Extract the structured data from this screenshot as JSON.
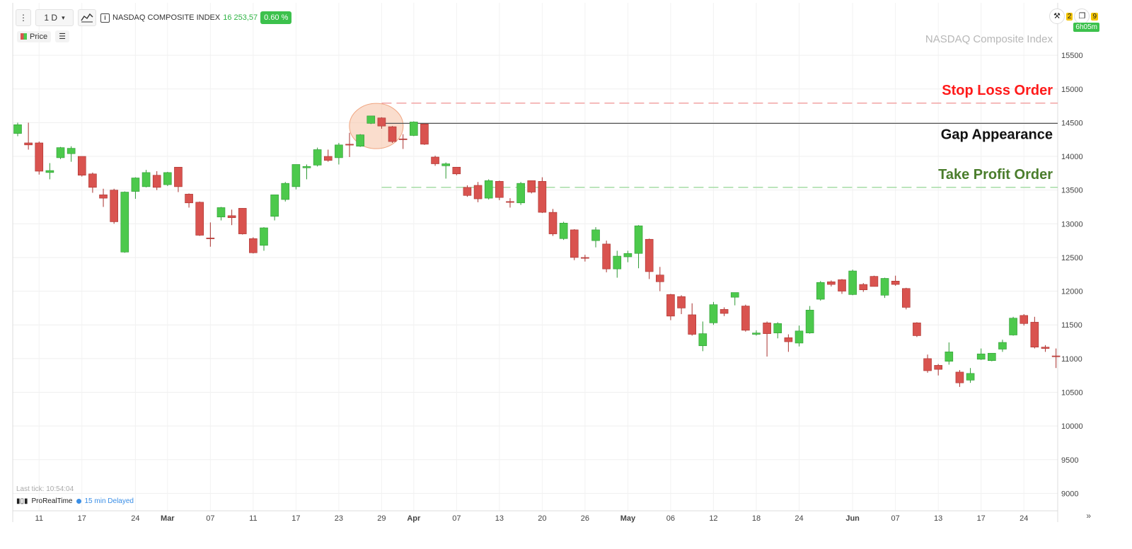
{
  "toolbar": {
    "timeframe_label": "1 D",
    "instrument_name": "NASDAQ COMPOSITE INDEX",
    "last_price": "16 253,57",
    "change_pct": "0.60 %"
  },
  "legend": {
    "price_label": "Price"
  },
  "corner": {
    "badge_a": "2",
    "badge_b": "9",
    "timer": "6h05m"
  },
  "footer": {
    "last_tick": "Last tick: 10:54:04",
    "brand": "ProRealTime",
    "delay": "15 min Delayed"
  },
  "chart_data": {
    "type": "candlestick",
    "title": "NASDAQ Composite Index",
    "ylim": [
      8700,
      15900
    ],
    "y_ticks": [
      9000,
      9500,
      10000,
      10500,
      11000,
      11500,
      12000,
      12500,
      13000,
      13500,
      14000,
      14500,
      15000,
      15500
    ],
    "y_tick_labels": [
      "9000",
      "9500",
      "10000",
      "10500",
      "11000",
      "11500",
      "12000",
      "12500",
      "13000",
      "13500",
      "14000",
      "14500",
      "15000",
      "15500"
    ],
    "x_tick_labels": [
      {
        "i": 2,
        "label": "11",
        "bold": false
      },
      {
        "i": 6,
        "label": "17",
        "bold": false
      },
      {
        "i": 11,
        "label": "24",
        "bold": false
      },
      {
        "i": 14,
        "label": "Mar",
        "bold": true
      },
      {
        "i": 18,
        "label": "07",
        "bold": false
      },
      {
        "i": 22,
        "label": "11",
        "bold": false
      },
      {
        "i": 26,
        "label": "17",
        "bold": false
      },
      {
        "i": 30,
        "label": "23",
        "bold": false
      },
      {
        "i": 34,
        "label": "29",
        "bold": false
      },
      {
        "i": 37,
        "label": "Apr",
        "bold": true
      },
      {
        "i": 41,
        "label": "07",
        "bold": false
      },
      {
        "i": 45,
        "label": "13",
        "bold": false
      },
      {
        "i": 49,
        "label": "20",
        "bold": false
      },
      {
        "i": 53,
        "label": "26",
        "bold": false
      },
      {
        "i": 57,
        "label": "May",
        "bold": true
      },
      {
        "i": 61,
        "label": "06",
        "bold": false
      },
      {
        "i": 65,
        "label": "12",
        "bold": false
      },
      {
        "i": 69,
        "label": "18",
        "bold": false
      },
      {
        "i": 73,
        "label": "24",
        "bold": false
      },
      {
        "i": 78,
        "label": "Jun",
        "bold": true
      },
      {
        "i": 82,
        "label": "07",
        "bold": false
      },
      {
        "i": 86,
        "label": "13",
        "bold": false
      },
      {
        "i": 90,
        "label": "17",
        "bold": false
      },
      {
        "i": 94,
        "label": "24",
        "bold": false
      }
    ],
    "candles": [
      {
        "o": 14340,
        "h": 14500,
        "l": 14300,
        "c": 14470
      },
      {
        "o": 14200,
        "h": 14500,
        "l": 14100,
        "c": 14170
      },
      {
        "o": 14200,
        "h": 14220,
        "l": 13730,
        "c": 13780
      },
      {
        "o": 13760,
        "h": 13900,
        "l": 13660,
        "c": 13790
      },
      {
        "o": 13980,
        "h": 14140,
        "l": 13960,
        "c": 14130
      },
      {
        "o": 14040,
        "h": 14150,
        "l": 13920,
        "c": 14120
      },
      {
        "o": 14000,
        "h": 14000,
        "l": 13700,
        "c": 13720
      },
      {
        "o": 13740,
        "h": 13760,
        "l": 13460,
        "c": 13540
      },
      {
        "o": 13430,
        "h": 13520,
        "l": 13250,
        "c": 13380
      },
      {
        "o": 13500,
        "h": 13520,
        "l": 13000,
        "c": 13030
      },
      {
        "o": 12580,
        "h": 13480,
        "l": 12570,
        "c": 13470
      },
      {
        "o": 13480,
        "h": 13690,
        "l": 13370,
        "c": 13680
      },
      {
        "o": 13550,
        "h": 13800,
        "l": 13540,
        "c": 13760
      },
      {
        "o": 13720,
        "h": 13780,
        "l": 13500,
        "c": 13540
      },
      {
        "o": 13580,
        "h": 13770,
        "l": 13560,
        "c": 13760
      },
      {
        "o": 13840,
        "h": 13840,
        "l": 13470,
        "c": 13550
      },
      {
        "o": 13440,
        "h": 13450,
        "l": 13240,
        "c": 13310
      },
      {
        "o": 13320,
        "h": 13330,
        "l": 12820,
        "c": 12830
      },
      {
        "o": 12790,
        "h": 13020,
        "l": 12660,
        "c": 12780
      },
      {
        "o": 13100,
        "h": 13250,
        "l": 13050,
        "c": 13240
      },
      {
        "o": 13120,
        "h": 13210,
        "l": 12980,
        "c": 13090
      },
      {
        "o": 13230,
        "h": 13230,
        "l": 12840,
        "c": 12850
      },
      {
        "o": 12780,
        "h": 12800,
        "l": 12560,
        "c": 12570
      },
      {
        "o": 12680,
        "h": 12950,
        "l": 12600,
        "c": 12940
      },
      {
        "o": 13110,
        "h": 13430,
        "l": 13050,
        "c": 13430
      },
      {
        "o": 13360,
        "h": 13620,
        "l": 13330,
        "c": 13600
      },
      {
        "o": 13550,
        "h": 13880,
        "l": 13510,
        "c": 13880
      },
      {
        "o": 13830,
        "h": 13880,
        "l": 13660,
        "c": 13850
      },
      {
        "o": 13870,
        "h": 14130,
        "l": 13850,
        "c": 14100
      },
      {
        "o": 14000,
        "h": 14100,
        "l": 13920,
        "c": 13940
      },
      {
        "o": 13980,
        "h": 14200,
        "l": 13880,
        "c": 14170
      },
      {
        "o": 14180,
        "h": 14350,
        "l": 13990,
        "c": 14170
      },
      {
        "o": 14150,
        "h": 14330,
        "l": 14140,
        "c": 14320
      },
      {
        "o": 14490,
        "h": 14600,
        "l": 14480,
        "c": 14600
      },
      {
        "o": 14570,
        "h": 14580,
        "l": 14410,
        "c": 14450
      },
      {
        "o": 14440,
        "h": 14450,
        "l": 14200,
        "c": 14220
      },
      {
        "o": 14260,
        "h": 14330,
        "l": 14110,
        "c": 14250
      },
      {
        "o": 14310,
        "h": 14520,
        "l": 14300,
        "c": 14510
      },
      {
        "o": 14480,
        "h": 14490,
        "l": 14170,
        "c": 14180
      },
      {
        "o": 13990,
        "h": 14010,
        "l": 13860,
        "c": 13890
      },
      {
        "o": 13860,
        "h": 13910,
        "l": 13670,
        "c": 13890
      },
      {
        "o": 13840,
        "h": 13840,
        "l": 13720,
        "c": 13740
      },
      {
        "o": 13540,
        "h": 13570,
        "l": 13400,
        "c": 13420
      },
      {
        "o": 13570,
        "h": 13620,
        "l": 13320,
        "c": 13370
      },
      {
        "o": 13380,
        "h": 13660,
        "l": 13360,
        "c": 13640
      },
      {
        "o": 13630,
        "h": 13640,
        "l": 13350,
        "c": 13390
      },
      {
        "o": 13330,
        "h": 13380,
        "l": 13240,
        "c": 13320
      },
      {
        "o": 13310,
        "h": 13620,
        "l": 13280,
        "c": 13600
      },
      {
        "o": 13640,
        "h": 13640,
        "l": 13450,
        "c": 13470
      },
      {
        "o": 13630,
        "h": 13690,
        "l": 13160,
        "c": 13170
      },
      {
        "o": 13170,
        "h": 13220,
        "l": 12820,
        "c": 12850
      },
      {
        "o": 12780,
        "h": 13030,
        "l": 12760,
        "c": 13010
      },
      {
        "o": 12910,
        "h": 12920,
        "l": 12460,
        "c": 12500
      },
      {
        "o": 12500,
        "h": 12540,
        "l": 12440,
        "c": 12490
      },
      {
        "o": 12750,
        "h": 12950,
        "l": 12650,
        "c": 12910
      },
      {
        "o": 12700,
        "h": 12750,
        "l": 12280,
        "c": 12330
      },
      {
        "o": 12330,
        "h": 12600,
        "l": 12200,
        "c": 12520
      },
      {
        "o": 12510,
        "h": 12600,
        "l": 12430,
        "c": 12560
      },
      {
        "o": 12560,
        "h": 12980,
        "l": 12340,
        "c": 12970
      },
      {
        "o": 12770,
        "h": 12780,
        "l": 12180,
        "c": 12290
      },
      {
        "o": 12240,
        "h": 12360,
        "l": 12000,
        "c": 12140
      },
      {
        "o": 11950,
        "h": 11960,
        "l": 11570,
        "c": 11630
      },
      {
        "o": 11920,
        "h": 11940,
        "l": 11660,
        "c": 11750
      },
      {
        "o": 11650,
        "h": 11820,
        "l": 11340,
        "c": 11360
      },
      {
        "o": 11190,
        "h": 11550,
        "l": 11110,
        "c": 11370
      },
      {
        "o": 11530,
        "h": 11840,
        "l": 11500,
        "c": 11800
      },
      {
        "o": 11730,
        "h": 11760,
        "l": 11630,
        "c": 11670
      },
      {
        "o": 11910,
        "h": 11980,
        "l": 11790,
        "c": 11980
      },
      {
        "o": 11780,
        "h": 11800,
        "l": 11400,
        "c": 11420
      },
      {
        "o": 11360,
        "h": 11420,
        "l": 11340,
        "c": 11380
      },
      {
        "o": 11530,
        "h": 11550,
        "l": 11030,
        "c": 11370
      },
      {
        "o": 11380,
        "h": 11540,
        "l": 11300,
        "c": 11520
      },
      {
        "o": 11310,
        "h": 11360,
        "l": 11100,
        "c": 11250
      },
      {
        "o": 11230,
        "h": 11490,
        "l": 11180,
        "c": 11410
      },
      {
        "o": 11380,
        "h": 11780,
        "l": 11370,
        "c": 11720
      },
      {
        "o": 11880,
        "h": 12150,
        "l": 11860,
        "c": 12130
      },
      {
        "o": 12140,
        "h": 12160,
        "l": 12070,
        "c": 12100
      },
      {
        "o": 12170,
        "h": 12180,
        "l": 11960,
        "c": 12000
      },
      {
        "o": 11950,
        "h": 12320,
        "l": 11940,
        "c": 12300
      },
      {
        "o": 12100,
        "h": 12120,
        "l": 11990,
        "c": 12020
      },
      {
        "o": 12220,
        "h": 12230,
        "l": 12070,
        "c": 12070
      },
      {
        "o": 11940,
        "h": 12200,
        "l": 11900,
        "c": 12190
      },
      {
        "o": 12150,
        "h": 12230,
        "l": 12080,
        "c": 12100
      },
      {
        "o": 12040,
        "h": 12050,
        "l": 11730,
        "c": 11760
      },
      {
        "o": 11530,
        "h": 11540,
        "l": 11320,
        "c": 11340
      },
      {
        "o": 11000,
        "h": 11060,
        "l": 10790,
        "c": 10820
      },
      {
        "o": 10900,
        "h": 10920,
        "l": 10750,
        "c": 10840
      },
      {
        "o": 10960,
        "h": 11240,
        "l": 10910,
        "c": 11100
      },
      {
        "o": 10800,
        "h": 10830,
        "l": 10580,
        "c": 10640
      },
      {
        "o": 10680,
        "h": 10860,
        "l": 10640,
        "c": 10780
      },
      {
        "o": 10990,
        "h": 11150,
        "l": 10980,
        "c": 11070
      },
      {
        "o": 10970,
        "h": 11080,
        "l": 10960,
        "c": 11080
      },
      {
        "o": 11140,
        "h": 11280,
        "l": 11100,
        "c": 11240
      },
      {
        "o": 11350,
        "h": 11620,
        "l": 11340,
        "c": 11600
      },
      {
        "o": 11640,
        "h": 11660,
        "l": 11490,
        "c": 11520
      },
      {
        "o": 11540,
        "h": 11620,
        "l": 11150,
        "c": 11170
      },
      {
        "o": 11170,
        "h": 11200,
        "l": 11100,
        "c": 11150
      },
      {
        "o": 11040,
        "h": 11150,
        "l": 10860,
        "c": 11030
      }
    ],
    "annotations": [
      {
        "label": "Stop Loss Order",
        "level": 14790,
        "color": "#ff1a1a",
        "line_color": "#f2a3a3",
        "style": "dashed",
        "start_i": 34
      },
      {
        "label": "Gap Appearance",
        "level": 14490,
        "color": "#111111",
        "line_color": "#555555",
        "style": "solid",
        "start_i": 34
      },
      {
        "label": "Take Profit Order",
        "level": 13540,
        "color": "#4a7d2c",
        "line_color": "#9ed99e",
        "style": "dashed",
        "start_i": 34
      }
    ],
    "highlight": {
      "center_i": 33.5,
      "center_y": 14450
    },
    "up_color": "#4cc94c",
    "down_color": "#d9534f",
    "grid": true
  }
}
